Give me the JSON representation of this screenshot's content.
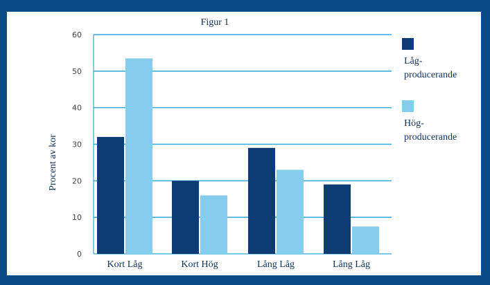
{
  "chart_data": {
    "type": "bar",
    "title": "Figur 1",
    "xlabel": "",
    "ylabel": "Procent av kor",
    "ylim": [
      0,
      60
    ],
    "yticks": [
      0,
      10,
      20,
      30,
      40,
      50,
      60
    ],
    "grid": true,
    "legend_position": "right",
    "categories": [
      "Kort Låg",
      "Kort Hög",
      "Lång Låg",
      "Lång Låg"
    ],
    "series": [
      {
        "name": "Låg-producerande",
        "legend_lines": [
          "Låg-",
          "producerande"
        ],
        "color": "#0d3b73",
        "values": [
          32,
          20,
          29,
          19
        ]
      },
      {
        "name": "Hög-producerande",
        "legend_lines": [
          "Hög-",
          "producerande"
        ],
        "color": "#86ccec",
        "values": [
          53.5,
          16,
          23,
          7.5
        ]
      }
    ]
  },
  "colors": {
    "background": "#0a4a86",
    "gridline": "#2ea7d9"
  }
}
